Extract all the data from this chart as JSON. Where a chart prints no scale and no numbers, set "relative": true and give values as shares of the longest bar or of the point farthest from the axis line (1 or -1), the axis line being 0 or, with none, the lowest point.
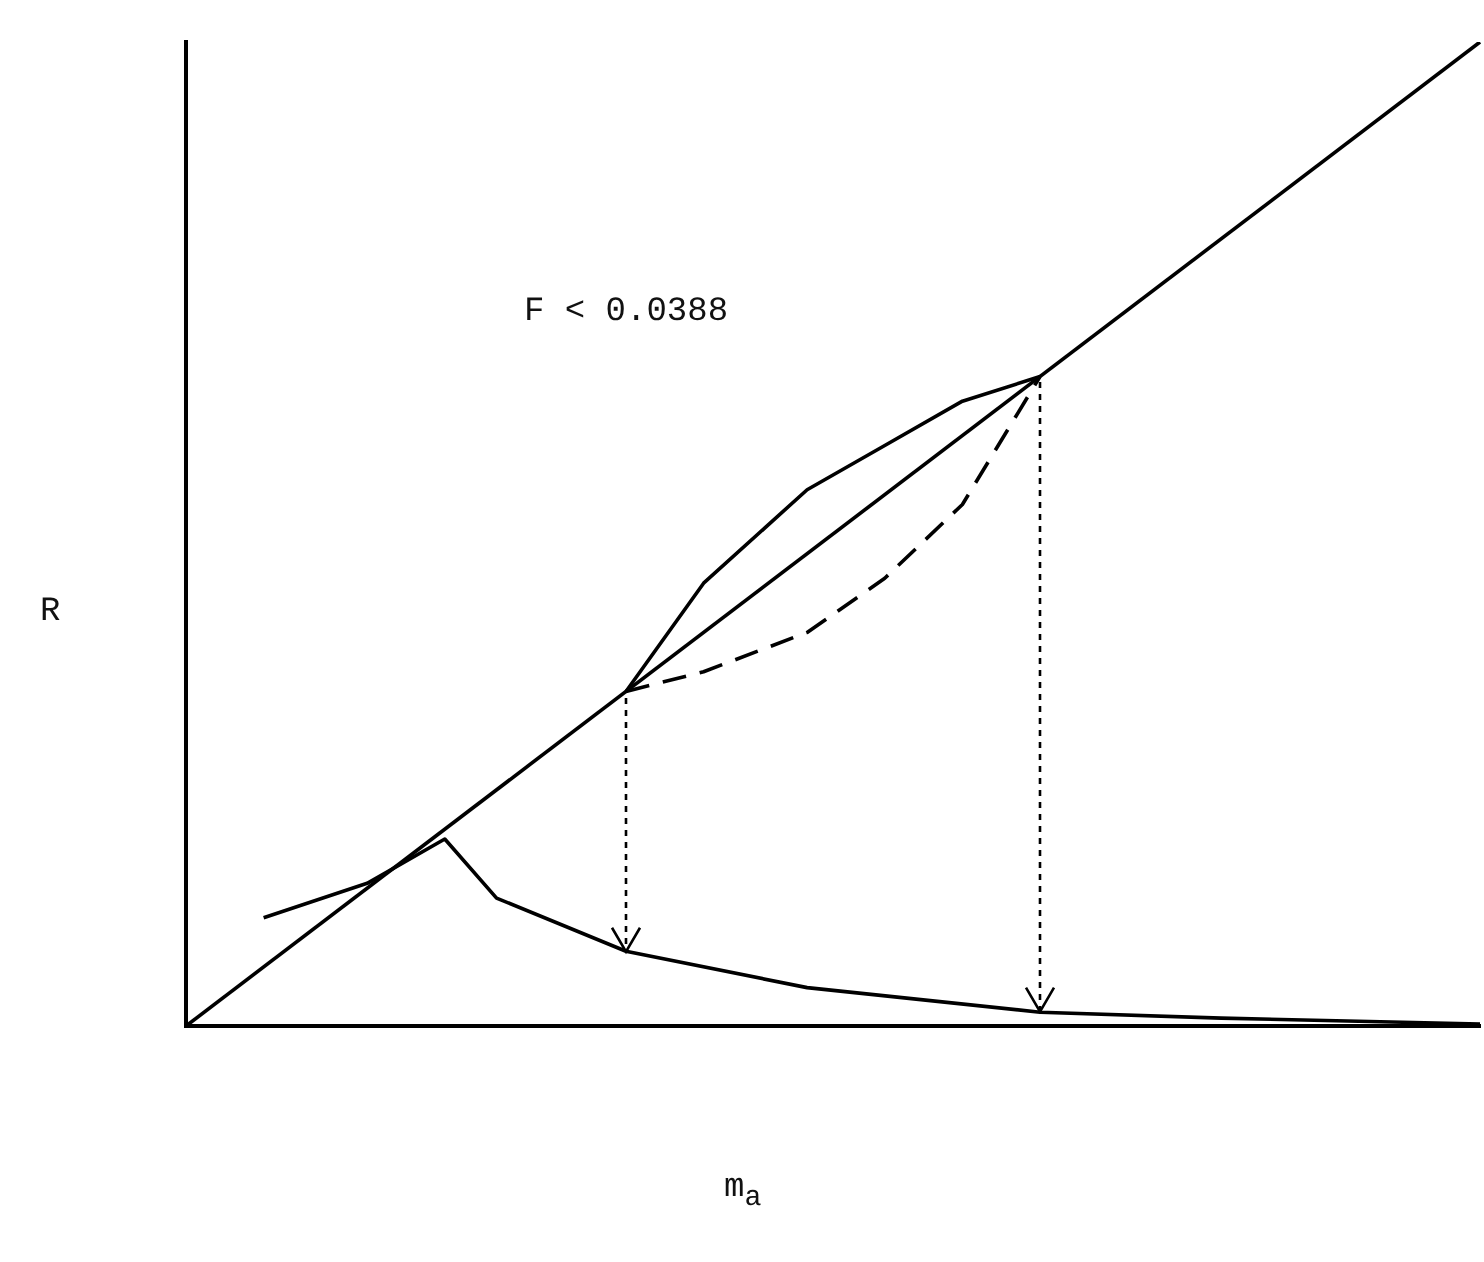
{
  "chart_data": {
    "type": "line",
    "relative": true,
    "xlabel": "m$_{a}$",
    "ylabel": "R",
    "annotations": [
      "F < 0.0388"
    ],
    "grid": false,
    "legend": false,
    "marker": "none",
    "categories": [
      null,
      null,
      null,
      null,
      null,
      null,
      null,
      null,
      null,
      null,
      null,
      null,
      null,
      null,
      null,
      null,
      null,
      null,
      null,
      null,
      null,
      null,
      null,
      null,
      null,
      null,
      null,
      null,
      null,
      null,
      null,
      null,
      null,
      null,
      null,
      null,
      null,
      null,
      null,
      null,
      null,
      null,
      null,
      null,
      null,
      null,
      null,
      null,
      null,
      null,
      null
    ],
    "series": [
      {
        "color": "#000000",
        "line_style": "solid",
        "values": [
          0,
          null,
          null,
          null,
          null,
          null,
          null,
          null,
          null,
          null,
          null,
          null,
          null,
          null,
          null,
          null,
          null,
          null,
          null,
          null,
          null,
          null,
          null,
          null,
          null,
          null,
          null,
          null,
          null,
          null,
          null,
          null,
          null,
          null,
          null,
          null,
          null,
          null,
          null,
          null,
          null,
          null,
          null,
          null,
          null,
          null,
          null,
          null,
          null,
          null,
          1
        ]
      },
      {
        "color": "#000000",
        "line_style": "solid",
        "values": [
          null,
          null,
          null,
          null,
          null,
          null,
          null,
          null,
          null,
          null,
          null,
          null,
          null,
          null,
          null,
          null,
          null,
          0.34,
          null,
          null,
          0.45,
          null,
          null,
          null,
          0.545,
          null,
          null,
          0.59,
          null,
          null,
          0.635,
          null,
          null,
          0.66,
          null,
          null,
          null,
          null,
          null,
          null,
          null,
          null,
          null,
          null,
          null,
          null,
          null,
          null,
          null,
          null,
          null
        ]
      },
      {
        "color": "#000000",
        "line_style": "dashed",
        "values": [
          null,
          null,
          null,
          null,
          null,
          null,
          null,
          null,
          null,
          null,
          null,
          null,
          null,
          null,
          null,
          null,
          null,
          0.34,
          null,
          null,
          0.36,
          null,
          null,
          null,
          0.4,
          null,
          null,
          0.455,
          null,
          null,
          0.53,
          null,
          null,
          0.66,
          null,
          null,
          null,
          null,
          null,
          null,
          null,
          null,
          null,
          null,
          null,
          null,
          null,
          null,
          null,
          null,
          null
        ]
      },
      {
        "color": "#000000",
        "line_style": "solid",
        "values": [
          null,
          null,
          null,
          0.11,
          null,
          null,
          null,
          0.145,
          null,
          null,
          0.19,
          null,
          0.13,
          null,
          null,
          null,
          null,
          0.076,
          null,
          null,
          null,
          null,
          null,
          null,
          0.039,
          null,
          null,
          null,
          null,
          null,
          null,
          null,
          null,
          0.014,
          null,
          null,
          null,
          null,
          null,
          null,
          0.008,
          null,
          null,
          null,
          null,
          null,
          null,
          null,
          null,
          null,
          0.002
        ]
      }
    ]
  }
}
